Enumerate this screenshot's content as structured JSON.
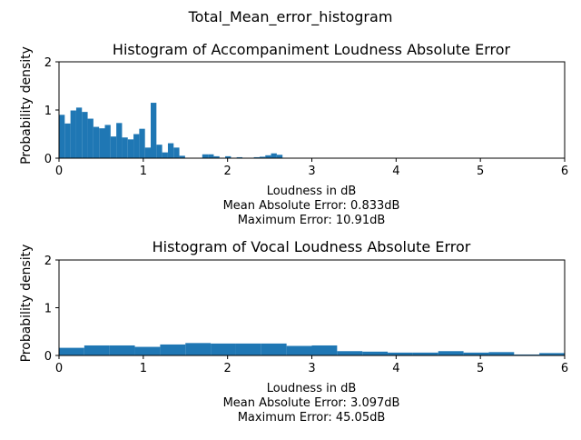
{
  "figure": {
    "suptitle": "Total_Mean_error_histogram"
  },
  "colors": {
    "bar": "#1f77b4",
    "axis": "#000000",
    "background": "#ffffff"
  },
  "chart_data": [
    {
      "type": "bar",
      "title": "Histogram of Accompaniment Loudness Absolute Error",
      "xlabel": "Loudness in dB",
      "ylabel": "Probability density",
      "notes": [
        "Mean Absolute Error: 0.833dB",
        "Maximum Error: 10.91dB"
      ],
      "xlim": [
        0,
        6
      ],
      "ylim": [
        0,
        2
      ],
      "xticks": [
        0,
        1,
        2,
        3,
        4,
        5,
        6
      ],
      "yticks": [
        0,
        1,
        2
      ],
      "bin_width": 0.068,
      "bins": [
        [
          0.0,
          0.9
        ],
        [
          0.068,
          0.72
        ],
        [
          0.136,
          0.99
        ],
        [
          0.204,
          1.05
        ],
        [
          0.272,
          0.96
        ],
        [
          0.34,
          0.82
        ],
        [
          0.408,
          0.65
        ],
        [
          0.476,
          0.62
        ],
        [
          0.544,
          0.69
        ],
        [
          0.612,
          0.45
        ],
        [
          0.68,
          0.73
        ],
        [
          0.748,
          0.43
        ],
        [
          0.816,
          0.39
        ],
        [
          0.884,
          0.5
        ],
        [
          0.952,
          0.61
        ],
        [
          1.02,
          0.22
        ],
        [
          1.088,
          1.15
        ],
        [
          1.156,
          0.28
        ],
        [
          1.224,
          0.12
        ],
        [
          1.292,
          0.31
        ],
        [
          1.36,
          0.22
        ],
        [
          1.428,
          0.05
        ],
        [
          1.7,
          0.08
        ],
        [
          1.768,
          0.08
        ],
        [
          1.836,
          0.04
        ],
        [
          1.972,
          0.04
        ],
        [
          2.108,
          0.02
        ],
        [
          2.312,
          0.02
        ],
        [
          2.38,
          0.03
        ],
        [
          2.448,
          0.06
        ],
        [
          2.516,
          0.1
        ],
        [
          2.584,
          0.07
        ]
      ]
    },
    {
      "type": "bar",
      "title": "Histogram of Vocal Loudness Absolute Error",
      "xlabel": "Loudness in dB",
      "ylabel": "Probability density",
      "notes": [
        "Mean Absolute Error: 3.097dB",
        "Maximum Error: 45.05dB"
      ],
      "xlim": [
        0,
        6
      ],
      "ylim": [
        0,
        2
      ],
      "xticks": [
        0,
        1,
        2,
        3,
        4,
        5,
        6
      ],
      "yticks": [
        0,
        1,
        2
      ],
      "bin_width": 0.3,
      "bins": [
        [
          0.0,
          0.16
        ],
        [
          0.3,
          0.21
        ],
        [
          0.6,
          0.21
        ],
        [
          0.9,
          0.18
        ],
        [
          1.2,
          0.23
        ],
        [
          1.5,
          0.26
        ],
        [
          1.8,
          0.25
        ],
        [
          2.1,
          0.25
        ],
        [
          2.4,
          0.25
        ],
        [
          2.7,
          0.2
        ],
        [
          3.0,
          0.21
        ],
        [
          3.3,
          0.09
        ],
        [
          3.6,
          0.08
        ],
        [
          3.9,
          0.06
        ],
        [
          4.2,
          0.06
        ],
        [
          4.5,
          0.09
        ],
        [
          4.8,
          0.06
        ],
        [
          5.1,
          0.07
        ],
        [
          5.4,
          0.02
        ],
        [
          5.7,
          0.05
        ]
      ]
    }
  ]
}
